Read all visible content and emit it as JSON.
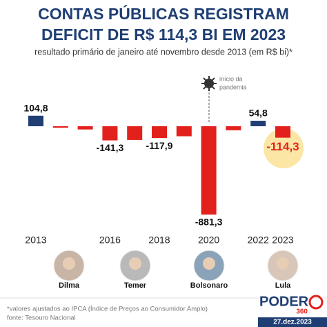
{
  "chart_data": {
    "type": "bar",
    "title": [
      "CONTAS PÚBLICAS REGISTRAM",
      "DEFICIT DE R$ 114,3 BI EM 2023"
    ],
    "subtitle": "resultado primário de janeiro até novembro desde 2013 (em R$ bi)*",
    "categories": [
      "2013",
      null,
      null,
      "2016",
      null,
      "2018",
      null,
      "2020",
      null,
      "2022",
      "2023"
    ],
    "values": [
      104.8,
      -15,
      -32,
      -141.3,
      -137,
      -117.9,
      -100,
      -881.3,
      -40,
      54.8,
      -114.3
    ],
    "value_labels": [
      "104,8",
      null,
      null,
      "-141,3",
      null,
      "-117,9",
      null,
      "-881,3",
      null,
      "54,8",
      "-114,3"
    ],
    "colors": {
      "positive": "#1f3f74",
      "negative": "#e3211c"
    },
    "annotation": [
      "início da",
      "pandemia"
    ]
  },
  "presidents": [
    "Dilma",
    "Temer",
    "Bolsonaro",
    "Lula"
  ],
  "footnotes": [
    "*valores ajustados ao IPCA (Índice de Preços ao Consumidor Amplo)",
    "fonte: Tesouro Nacional"
  ],
  "brand": {
    "name": "PODER",
    "number": "360",
    "date": "27.dez.2023"
  }
}
